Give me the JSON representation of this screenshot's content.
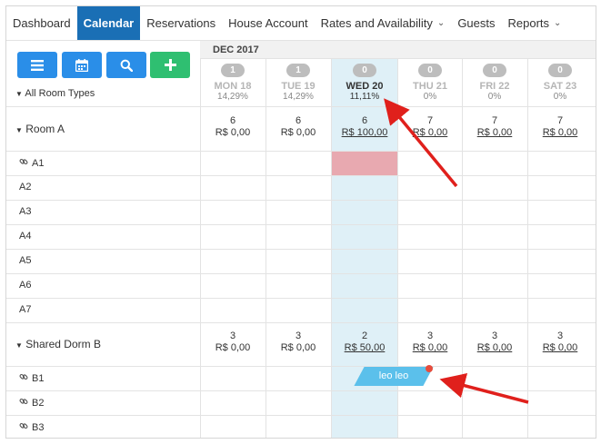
{
  "nav": {
    "items": [
      {
        "label": "Dashboard",
        "active": false,
        "dropdown": false
      },
      {
        "label": "Calendar",
        "active": true,
        "dropdown": false
      },
      {
        "label": "Reservations",
        "active": false,
        "dropdown": false
      },
      {
        "label": "House Account",
        "active": false,
        "dropdown": false
      },
      {
        "label": "Rates and Availability",
        "active": false,
        "dropdown": true
      },
      {
        "label": "Guests",
        "active": false,
        "dropdown": false
      },
      {
        "label": "Reports",
        "active": false,
        "dropdown": true
      }
    ]
  },
  "toolbar": {
    "buttons": [
      {
        "icon": "list-icon",
        "color": "#2a8ee8"
      },
      {
        "icon": "calendar-icon",
        "color": "#2a8ee8"
      },
      {
        "icon": "search-icon",
        "color": "#2a8ee8"
      },
      {
        "icon": "plus-icon",
        "color": "#2fbf71"
      }
    ]
  },
  "filter": {
    "room_types_label": "All Room Types"
  },
  "calendar": {
    "month": "DEC 2017",
    "days": [
      {
        "count": "1",
        "name": "MON 18",
        "occupancy": "14,29%",
        "today": false
      },
      {
        "count": "1",
        "name": "TUE 19",
        "occupancy": "14,29%",
        "today": false
      },
      {
        "count": "0",
        "name": "WED 20",
        "occupancy": "11,11%",
        "today": true
      },
      {
        "count": "0",
        "name": "THU 21",
        "occupancy": "0%",
        "today": false
      },
      {
        "count": "0",
        "name": "FRI 22",
        "occupancy": "0%",
        "today": false
      },
      {
        "count": "0",
        "name": "SAT 23",
        "occupancy": "0%",
        "today": false
      }
    ]
  },
  "groups": [
    {
      "name": "Room A",
      "availability": [
        {
          "units": "6",
          "price": "R$ 0,00",
          "link": false
        },
        {
          "units": "6",
          "price": "R$ 0,00",
          "link": false
        },
        {
          "units": "6",
          "price": "R$ 100,00",
          "link": true
        },
        {
          "units": "7",
          "price": "R$ 0,00",
          "link": true
        },
        {
          "units": "7",
          "price": "R$ 0,00",
          "link": true
        },
        {
          "units": "7",
          "price": "R$ 0,00",
          "link": true
        }
      ],
      "rooms": [
        "A1",
        "A2",
        "A3",
        "A4",
        "A5",
        "A6",
        "A7"
      ]
    },
    {
      "name": "Shared Dorm B",
      "availability": [
        {
          "units": "3",
          "price": "R$ 0,00",
          "link": false
        },
        {
          "units": "3",
          "price": "R$ 0,00",
          "link": false
        },
        {
          "units": "2",
          "price": "R$ 50,00",
          "link": true
        },
        {
          "units": "3",
          "price": "R$ 0,00",
          "link": true
        },
        {
          "units": "3",
          "price": "R$ 0,00",
          "link": true
        },
        {
          "units": "3",
          "price": "R$ 0,00",
          "link": true
        }
      ],
      "rooms": [
        "B1",
        "B2",
        "B3"
      ]
    }
  ],
  "booking": {
    "guest": "leo leo",
    "color": "#5bc0eb"
  },
  "blocked_cell": {
    "room": "A1",
    "day": "WED 20",
    "color": "#e8a9b0"
  },
  "annotation_color": "#e0201c"
}
